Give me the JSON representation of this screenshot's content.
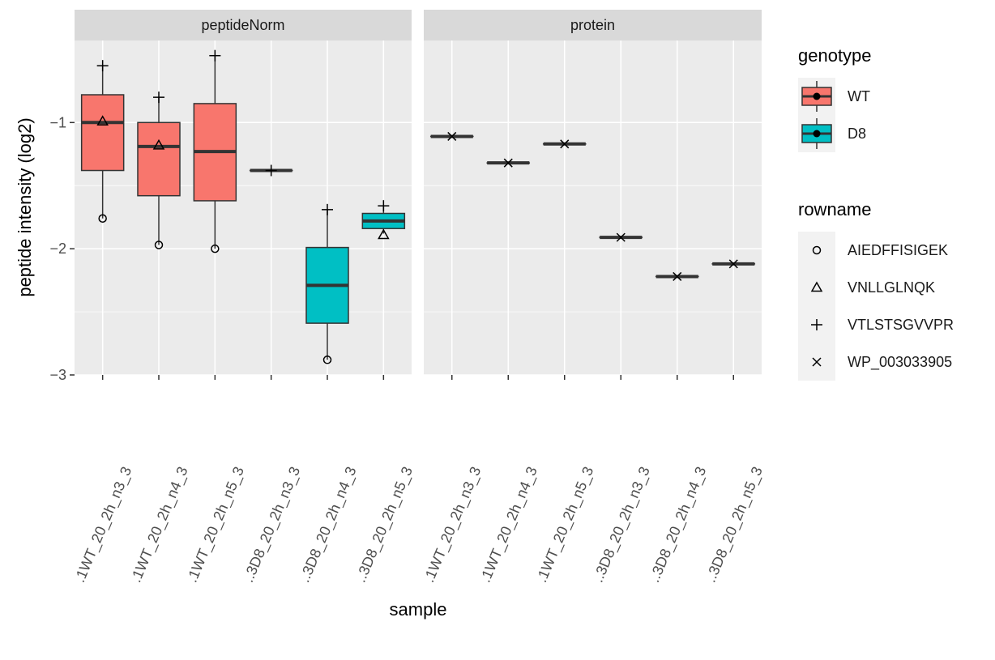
{
  "chart_data": {
    "type": "boxplot",
    "ylabel": "peptide intensity (log2)",
    "xlabel": "sample",
    "ylim": [
      -3.0,
      -0.35
    ],
    "yticks": [
      -1,
      -2,
      -3
    ],
    "ytick_labels": [
      "−1",
      "−2",
      "−3"
    ],
    "grid": true,
    "legend_position": "right",
    "facets": [
      {
        "name": "peptideNorm",
        "x": [
          "1WT_20_2h_n3_3",
          "1WT_20_2h_n4_3",
          "1WT_20_2h_n5_3",
          "3D8_20_2h_n3_3",
          "3D8_20_2h_n4_3",
          "3D8_20_2h_n5_3"
        ],
        "x_labels": [
          ".1WT_20_2h_n3_3",
          ".1WT_20_2h_n4_3",
          ".1WT_20_2h_n5_3",
          "..3D8_20_2h_n3_3",
          "..3D8_20_2h_n4_3",
          "..3D8_20_2h_n5_3"
        ],
        "boxes": [
          {
            "x": "1WT_20_2h_n3_3",
            "genotype": "WT",
            "q1": -1.38,
            "median": -1.0,
            "q3": -0.78,
            "lower": -1.76,
            "upper": -0.55
          },
          {
            "x": "1WT_20_2h_n4_3",
            "genotype": "WT",
            "q1": -1.58,
            "median": -1.19,
            "q3": -1.0,
            "lower": -1.97,
            "upper": -0.8
          },
          {
            "x": "1WT_20_2h_n5_3",
            "genotype": "WT",
            "q1": -1.62,
            "median": -1.23,
            "q3": -0.85,
            "lower": -2.0,
            "upper": -0.47
          },
          {
            "x": "3D8_20_2h_n3_3",
            "genotype": "D8",
            "q1": -1.38,
            "median": -1.38,
            "q3": -1.38,
            "lower": -1.38,
            "upper": -1.38
          },
          {
            "x": "3D8_20_2h_n4_3",
            "genotype": "D8",
            "q1": -2.59,
            "median": -2.29,
            "q3": -1.99,
            "lower": -2.88,
            "upper": -1.69
          },
          {
            "x": "3D8_20_2h_n5_3",
            "genotype": "D8",
            "q1": -1.84,
            "median": -1.78,
            "q3": -1.72,
            "lower": -1.88,
            "upper": -1.66
          }
        ],
        "points": [
          {
            "x": "1WT_20_2h_n3_3",
            "y": -1.76,
            "rowname": "AIEDFFISIGEK"
          },
          {
            "x": "1WT_20_2h_n3_3",
            "y": -0.99,
            "rowname": "VNLLGLNQK"
          },
          {
            "x": "1WT_20_2h_n3_3",
            "y": -0.55,
            "rowname": "VTLSTSGVVPR"
          },
          {
            "x": "1WT_20_2h_n4_3",
            "y": -1.97,
            "rowname": "AIEDFFISIGEK"
          },
          {
            "x": "1WT_20_2h_n4_3",
            "y": -1.18,
            "rowname": "VNLLGLNQK"
          },
          {
            "x": "1WT_20_2h_n4_3",
            "y": -0.8,
            "rowname": "VTLSTSGVVPR"
          },
          {
            "x": "1WT_20_2h_n5_3",
            "y": -2.0,
            "rowname": "AIEDFFISIGEK"
          },
          {
            "x": "1WT_20_2h_n5_3",
            "y": -0.47,
            "rowname": "VTLSTSGVVPR"
          },
          {
            "x": "3D8_20_2h_n3_3",
            "y": -1.38,
            "rowname": "VTLSTSGVVPR"
          },
          {
            "x": "3D8_20_2h_n4_3",
            "y": -2.88,
            "rowname": "AIEDFFISIGEK"
          },
          {
            "x": "3D8_20_2h_n4_3",
            "y": -1.69,
            "rowname": "VTLSTSGVVPR"
          },
          {
            "x": "3D8_20_2h_n5_3",
            "y": -1.89,
            "rowname": "VNLLGLNQK"
          },
          {
            "x": "3D8_20_2h_n5_3",
            "y": -1.66,
            "rowname": "VTLSTSGVVPR"
          }
        ]
      },
      {
        "name": "protein",
        "x": [
          "1WT_20_2h_n3_3",
          "1WT_20_2h_n4_3",
          "1WT_20_2h_n5_3",
          "3D8_20_2h_n3_3",
          "3D8_20_2h_n4_3",
          "3D8_20_2h_n5_3"
        ],
        "x_labels": [
          ".1WT_20_2h_n3_3",
          ".1WT_20_2h_n4_3",
          ".1WT_20_2h_n5_3",
          "..3D8_20_2h_n3_3",
          "..3D8_20_2h_n4_3",
          "..3D8_20_2h_n5_3"
        ],
        "boxes": [
          {
            "x": "1WT_20_2h_n3_3",
            "genotype": "WT",
            "q1": -1.11,
            "median": -1.11,
            "q3": -1.11,
            "lower": -1.11,
            "upper": -1.11
          },
          {
            "x": "1WT_20_2h_n4_3",
            "genotype": "WT",
            "q1": -1.32,
            "median": -1.32,
            "q3": -1.32,
            "lower": -1.32,
            "upper": -1.32
          },
          {
            "x": "1WT_20_2h_n5_3",
            "genotype": "WT",
            "q1": -1.17,
            "median": -1.17,
            "q3": -1.17,
            "lower": -1.17,
            "upper": -1.17
          },
          {
            "x": "3D8_20_2h_n3_3",
            "genotype": "D8",
            "q1": -1.91,
            "median": -1.91,
            "q3": -1.91,
            "lower": -1.91,
            "upper": -1.91
          },
          {
            "x": "3D8_20_2h_n4_3",
            "genotype": "D8",
            "q1": -2.22,
            "median": -2.22,
            "q3": -2.22,
            "lower": -2.22,
            "upper": -2.22
          },
          {
            "x": "3D8_20_2h_n5_3",
            "genotype": "D8",
            "q1": -2.12,
            "median": -2.12,
            "q3": -2.12,
            "lower": -2.12,
            "upper": -2.12
          }
        ],
        "points": [
          {
            "x": "1WT_20_2h_n3_3",
            "y": -1.11,
            "rowname": "WP_003033905"
          },
          {
            "x": "1WT_20_2h_n4_3",
            "y": -1.32,
            "rowname": "WP_003033905"
          },
          {
            "x": "1WT_20_2h_n5_3",
            "y": -1.17,
            "rowname": "WP_003033905"
          },
          {
            "x": "3D8_20_2h_n3_3",
            "y": -1.91,
            "rowname": "WP_003033905"
          },
          {
            "x": "3D8_20_2h_n4_3",
            "y": -2.22,
            "rowname": "WP_003033905"
          },
          {
            "x": "3D8_20_2h_n5_3",
            "y": -2.12,
            "rowname": "WP_003033905"
          }
        ]
      }
    ],
    "legends": {
      "genotype": {
        "title": "genotype",
        "items": [
          {
            "label": "WT",
            "color": "#F8766D"
          },
          {
            "label": "D8",
            "color": "#00BFC4"
          }
        ]
      },
      "rowname": {
        "title": "rowname",
        "items": [
          {
            "label": "AIEDFFISIGEK",
            "shape": "circle"
          },
          {
            "label": "VNLLGLNQK",
            "shape": "triangle"
          },
          {
            "label": "VTLSTSGVVPR",
            "shape": "plus"
          },
          {
            "label": "WP_003033905",
            "shape": "cross"
          }
        ]
      }
    },
    "colors": {
      "panel_bg": "#EBEBEB",
      "strip_bg": "#D9D9D9",
      "grid": "#FFFFFF",
      "text": "#1A1A1A",
      "tick_text": "#4D4D4D"
    }
  }
}
